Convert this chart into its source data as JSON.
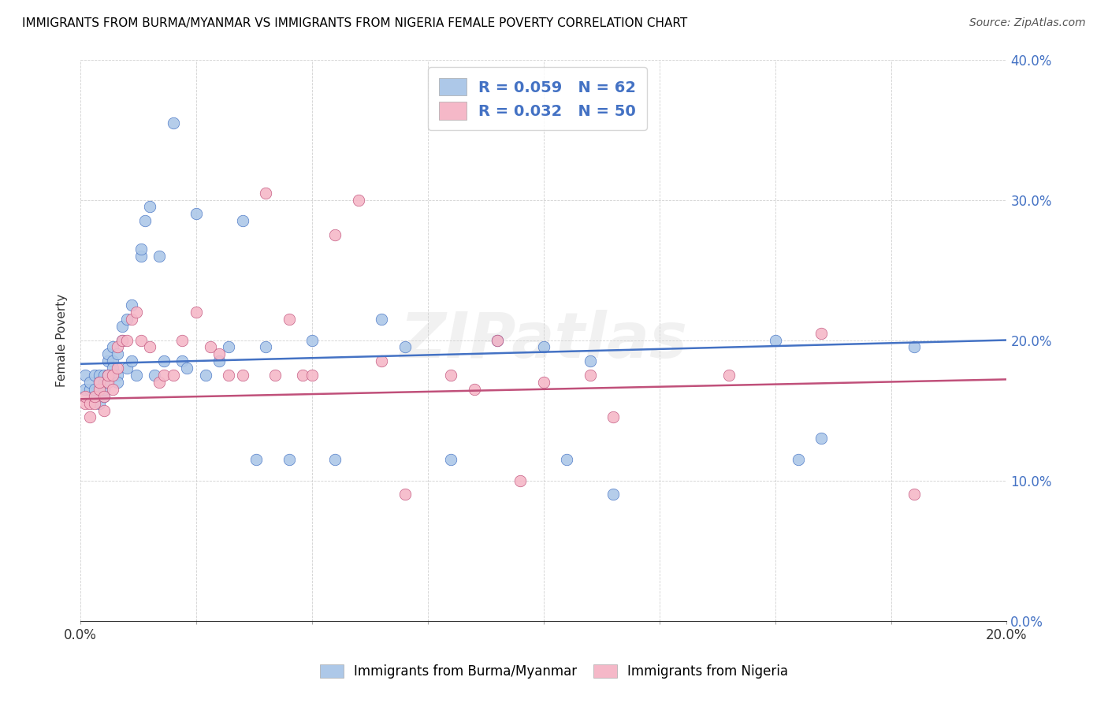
{
  "title": "IMMIGRANTS FROM BURMA/MYANMAR VS IMMIGRANTS FROM NIGERIA FEMALE POVERTY CORRELATION CHART",
  "source": "Source: ZipAtlas.com",
  "ylabel": "Female Poverty",
  "xlim": [
    0.0,
    0.2
  ],
  "ylim": [
    0.0,
    0.4
  ],
  "color_burma": "#adc8e8",
  "color_nigeria": "#f5b8c8",
  "color_burma_line": "#4472C4",
  "color_nigeria_line": "#C0507A",
  "watermark": "ZIPatlas",
  "burma_x": [
    0.001,
    0.001,
    0.002,
    0.002,
    0.003,
    0.003,
    0.003,
    0.004,
    0.004,
    0.004,
    0.005,
    0.005,
    0.005,
    0.005,
    0.006,
    0.006,
    0.006,
    0.007,
    0.007,
    0.007,
    0.008,
    0.008,
    0.008,
    0.009,
    0.009,
    0.01,
    0.01,
    0.011,
    0.011,
    0.012,
    0.013,
    0.013,
    0.014,
    0.015,
    0.016,
    0.017,
    0.018,
    0.02,
    0.022,
    0.023,
    0.025,
    0.027,
    0.03,
    0.032,
    0.035,
    0.038,
    0.04,
    0.045,
    0.05,
    0.055,
    0.065,
    0.07,
    0.08,
    0.09,
    0.1,
    0.105,
    0.11,
    0.115,
    0.15,
    0.155,
    0.16,
    0.18
  ],
  "burma_y": [
    0.175,
    0.165,
    0.165,
    0.17,
    0.16,
    0.165,
    0.175,
    0.155,
    0.175,
    0.17,
    0.16,
    0.165,
    0.17,
    0.175,
    0.185,
    0.19,
    0.175,
    0.185,
    0.18,
    0.195,
    0.19,
    0.175,
    0.17,
    0.2,
    0.21,
    0.215,
    0.18,
    0.185,
    0.225,
    0.175,
    0.26,
    0.265,
    0.285,
    0.295,
    0.175,
    0.26,
    0.185,
    0.355,
    0.185,
    0.18,
    0.29,
    0.175,
    0.185,
    0.195,
    0.285,
    0.115,
    0.195,
    0.115,
    0.2,
    0.115,
    0.215,
    0.195,
    0.115,
    0.2,
    0.195,
    0.115,
    0.185,
    0.09,
    0.2,
    0.115,
    0.13,
    0.195
  ],
  "nigeria_x": [
    0.001,
    0.001,
    0.002,
    0.002,
    0.003,
    0.003,
    0.004,
    0.004,
    0.005,
    0.005,
    0.006,
    0.006,
    0.007,
    0.007,
    0.008,
    0.008,
    0.009,
    0.01,
    0.011,
    0.012,
    0.013,
    0.015,
    0.017,
    0.018,
    0.02,
    0.022,
    0.025,
    0.028,
    0.03,
    0.032,
    0.035,
    0.04,
    0.042,
    0.045,
    0.048,
    0.05,
    0.055,
    0.06,
    0.065,
    0.07,
    0.08,
    0.085,
    0.09,
    0.095,
    0.1,
    0.11,
    0.115,
    0.14,
    0.16,
    0.18
  ],
  "nigeria_y": [
    0.155,
    0.16,
    0.145,
    0.155,
    0.155,
    0.16,
    0.165,
    0.17,
    0.15,
    0.16,
    0.17,
    0.175,
    0.165,
    0.175,
    0.18,
    0.195,
    0.2,
    0.2,
    0.215,
    0.22,
    0.2,
    0.195,
    0.17,
    0.175,
    0.175,
    0.2,
    0.22,
    0.195,
    0.19,
    0.175,
    0.175,
    0.305,
    0.175,
    0.215,
    0.175,
    0.175,
    0.275,
    0.3,
    0.185,
    0.09,
    0.175,
    0.165,
    0.2,
    0.1,
    0.17,
    0.175,
    0.145,
    0.175,
    0.205,
    0.09
  ]
}
